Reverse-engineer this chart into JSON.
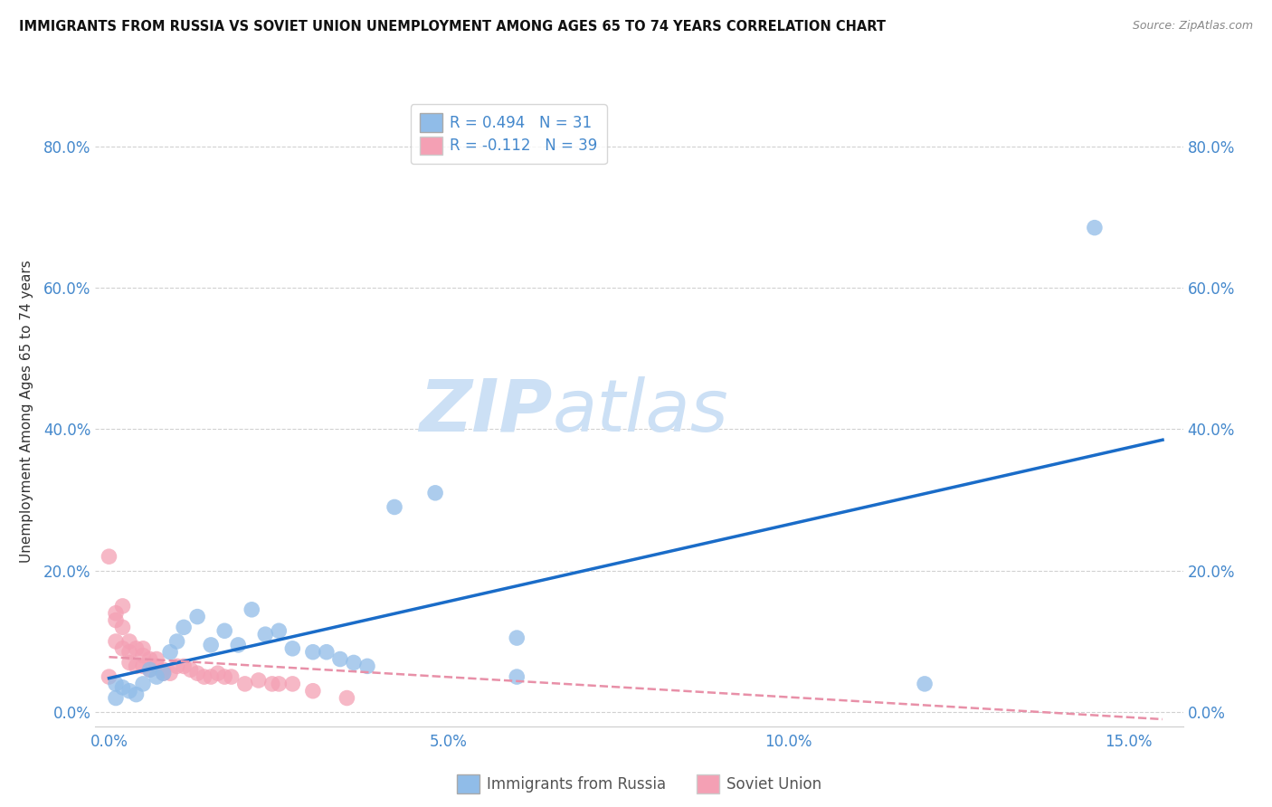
{
  "title": "IMMIGRANTS FROM RUSSIA VS SOVIET UNION UNEMPLOYMENT AMONG AGES 65 TO 74 YEARS CORRELATION CHART",
  "source": "Source: ZipAtlas.com",
  "xlabel_ticks": [
    "0.0%",
    "5.0%",
    "10.0%",
    "15.0%"
  ],
  "xlabel_tick_vals": [
    0.0,
    0.05,
    0.1,
    0.15
  ],
  "ylabel_ticks": [
    "0.0%",
    "20.0%",
    "40.0%",
    "60.0%",
    "80.0%"
  ],
  "ylabel_tick_vals": [
    0.0,
    0.2,
    0.4,
    0.6,
    0.8
  ],
  "xlim": [
    -0.002,
    0.158
  ],
  "ylim": [
    -0.02,
    0.87
  ],
  "ylabel": "Unemployment Among Ages 65 to 74 years",
  "legend_russia_r": "R = 0.494",
  "legend_russia_n": "N = 31",
  "legend_soviet_r": "R = -0.112",
  "legend_soviet_n": "N = 39",
  "russia_color": "#90bce8",
  "soviet_color": "#f4a0b4",
  "russia_line_color": "#1a6cc8",
  "soviet_line_color": "#e890a8",
  "watermark_zip": "ZIP",
  "watermark_atlas": "atlas",
  "russia_scatter_x": [
    0.001,
    0.001,
    0.002,
    0.003,
    0.004,
    0.005,
    0.006,
    0.007,
    0.008,
    0.009,
    0.01,
    0.011,
    0.013,
    0.015,
    0.017,
    0.019,
    0.021,
    0.023,
    0.025,
    0.027,
    0.03,
    0.032,
    0.034,
    0.036,
    0.038,
    0.042,
    0.048,
    0.06,
    0.06,
    0.12,
    0.145
  ],
  "russia_scatter_y": [
    0.02,
    0.04,
    0.035,
    0.03,
    0.025,
    0.04,
    0.06,
    0.05,
    0.055,
    0.085,
    0.1,
    0.12,
    0.135,
    0.095,
    0.115,
    0.095,
    0.145,
    0.11,
    0.115,
    0.09,
    0.085,
    0.085,
    0.075,
    0.07,
    0.065,
    0.29,
    0.31,
    0.105,
    0.05,
    0.04,
    0.685
  ],
  "soviet_scatter_x": [
    0.0,
    0.0,
    0.001,
    0.001,
    0.001,
    0.002,
    0.002,
    0.002,
    0.003,
    0.003,
    0.003,
    0.004,
    0.004,
    0.005,
    0.005,
    0.005,
    0.006,
    0.006,
    0.007,
    0.007,
    0.008,
    0.008,
    0.009,
    0.01,
    0.011,
    0.012,
    0.013,
    0.014,
    0.015,
    0.016,
    0.017,
    0.018,
    0.02,
    0.022,
    0.024,
    0.025,
    0.027,
    0.03,
    0.035
  ],
  "soviet_scatter_y": [
    0.22,
    0.05,
    0.14,
    0.13,
    0.1,
    0.15,
    0.12,
    0.09,
    0.1,
    0.085,
    0.07,
    0.09,
    0.065,
    0.09,
    0.08,
    0.065,
    0.075,
    0.06,
    0.075,
    0.065,
    0.06,
    0.055,
    0.055,
    0.065,
    0.065,
    0.06,
    0.055,
    0.05,
    0.05,
    0.055,
    0.05,
    0.05,
    0.04,
    0.045,
    0.04,
    0.04,
    0.04,
    0.03,
    0.02
  ],
  "background_color": "#ffffff",
  "grid_color": "#cccccc",
  "russia_line_x": [
    0.0,
    0.155
  ],
  "russia_line_y": [
    0.048,
    0.385
  ],
  "soviet_line_x": [
    0.0,
    0.155
  ],
  "soviet_line_y": [
    0.078,
    -0.01
  ]
}
